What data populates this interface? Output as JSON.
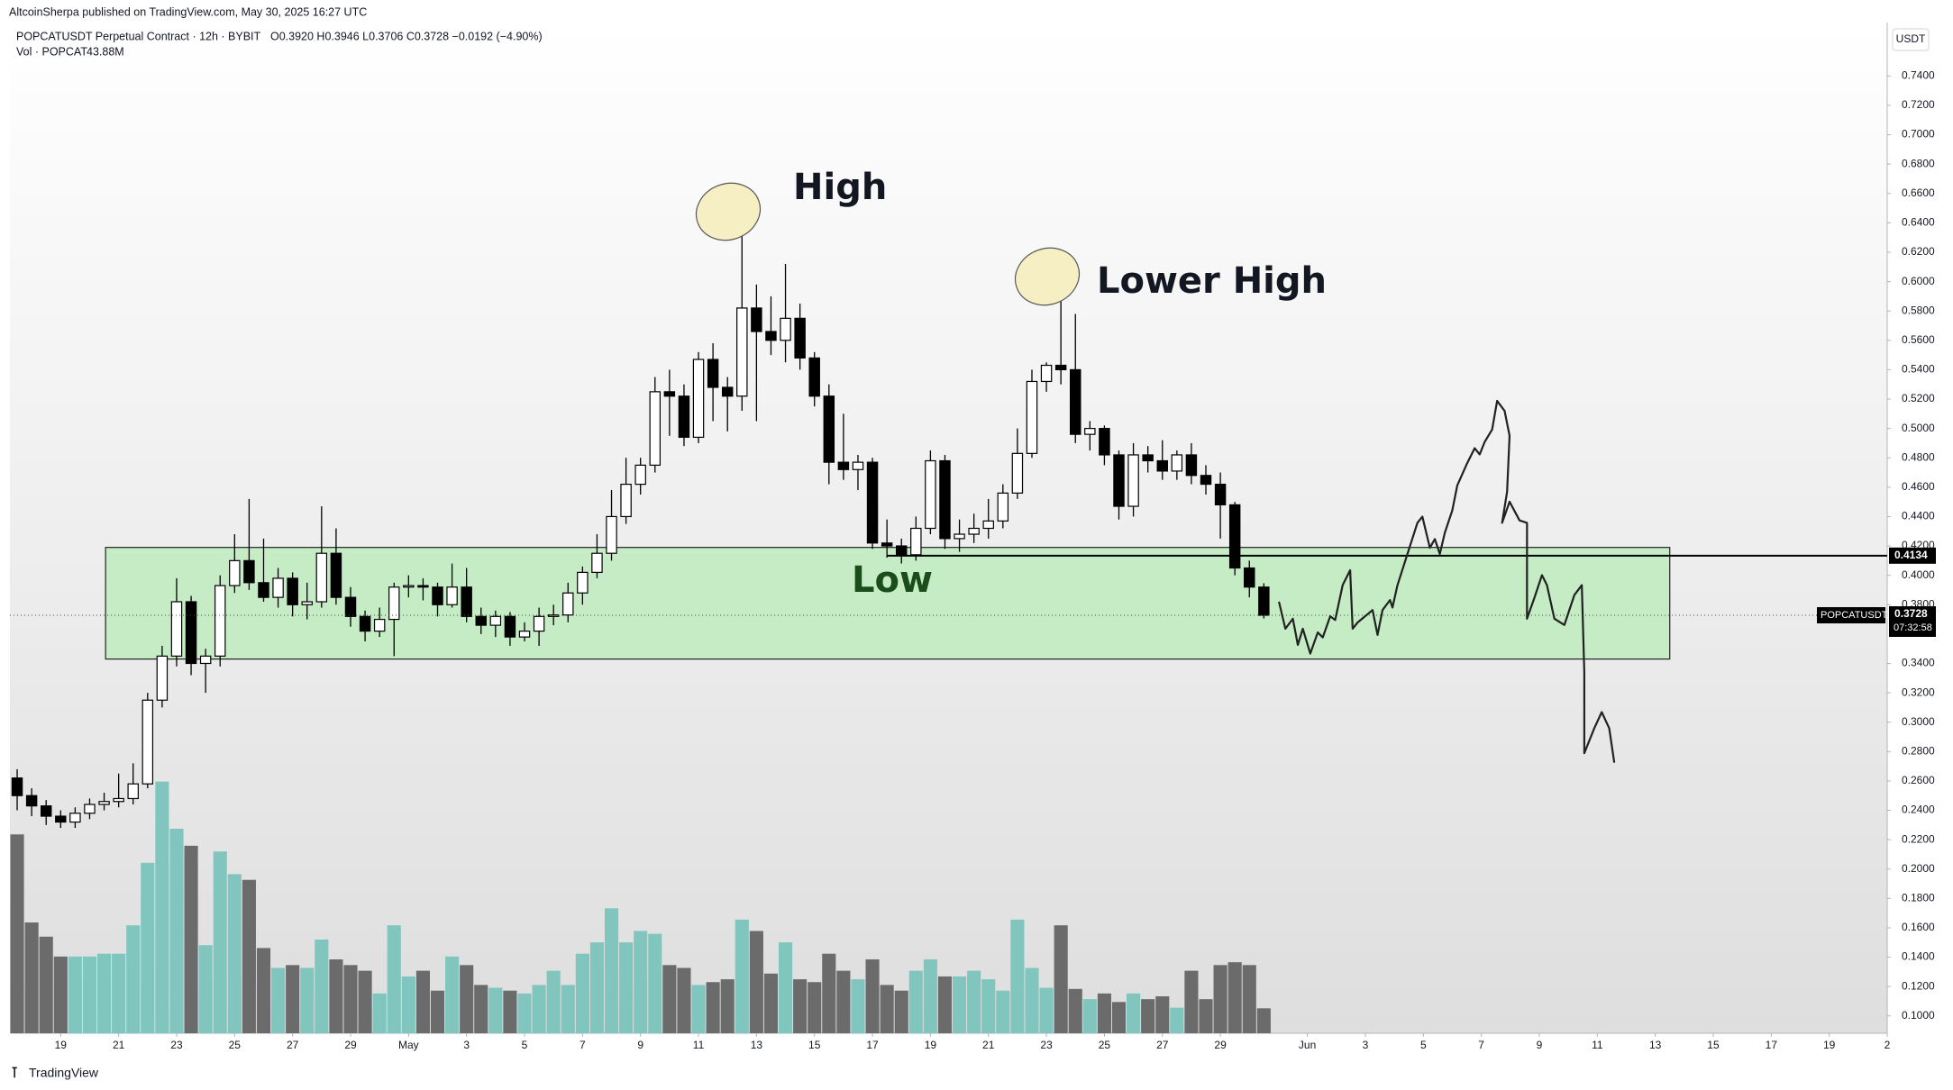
{
  "header": {
    "publisher": "AltcoinSherpa published on TradingView.com, May 30, 2025 16:27 UTC",
    "symbol": "POPCATUSDT Perpetual Contract · 12h · BYBIT",
    "ohlc": "O0.3920 H0.3946 L0.3706 C0.3728 −0.0192 (−4.90%)",
    "volume_legend": "Vol · POPCAT",
    "volume_value": "43.88M"
  },
  "annotations": {
    "high": "High",
    "lower_high": "Lower High",
    "low": "Low"
  },
  "footer": {
    "brand": "TradingView"
  },
  "chart_data": {
    "type": "candlestick",
    "y_axis_label": "USDT",
    "xlim": [
      -0.5,
      129
    ],
    "ylim": [
      0.0882,
      0.7764
    ],
    "xticks": [
      {
        "value": 3,
        "label": "19"
      },
      {
        "value": 7,
        "label": "21"
      },
      {
        "value": 11,
        "label": "23"
      },
      {
        "value": 15,
        "label": "25"
      },
      {
        "value": 19,
        "label": "27"
      },
      {
        "value": 23,
        "label": "29"
      },
      {
        "value": 27,
        "label": "May"
      },
      {
        "value": 31,
        "label": "3"
      },
      {
        "value": 35,
        "label": "5"
      },
      {
        "value": 39,
        "label": "7"
      },
      {
        "value": 43,
        "label": "9"
      },
      {
        "value": 47,
        "label": "11"
      },
      {
        "value": 51,
        "label": "13"
      },
      {
        "value": 55,
        "label": "15"
      },
      {
        "value": 59,
        "label": "17"
      },
      {
        "value": 63,
        "label": "19"
      },
      {
        "value": 67,
        "label": "21"
      },
      {
        "value": 71,
        "label": "23"
      },
      {
        "value": 75,
        "label": "25"
      },
      {
        "value": 79,
        "label": "27"
      },
      {
        "value": 83,
        "label": "29"
      },
      {
        "value": 89,
        "label": "Jun"
      },
      {
        "value": 93,
        "label": "3"
      },
      {
        "value": 97,
        "label": "5"
      },
      {
        "value": 101,
        "label": "7"
      },
      {
        "value": 105,
        "label": "9"
      },
      {
        "value": 109,
        "label": "11"
      },
      {
        "value": 113,
        "label": "13"
      },
      {
        "value": 117,
        "label": "15"
      },
      {
        "value": 121,
        "label": "17"
      },
      {
        "value": 125,
        "label": "19"
      },
      {
        "value": 129,
        "label": "2"
      }
    ],
    "yticks": [
      {
        "value": 0.74,
        "label": "0.7400"
      },
      {
        "value": 0.72,
        "label": "0.7200"
      },
      {
        "value": 0.7,
        "label": "0.7000"
      },
      {
        "value": 0.68,
        "label": "0.6800"
      },
      {
        "value": 0.66,
        "label": "0.6600"
      },
      {
        "value": 0.64,
        "label": "0.6400"
      },
      {
        "value": 0.62,
        "label": "0.6200"
      },
      {
        "value": 0.6,
        "label": "0.6000"
      },
      {
        "value": 0.58,
        "label": "0.5800"
      },
      {
        "value": 0.56,
        "label": "0.5600"
      },
      {
        "value": 0.54,
        "label": "0.5400"
      },
      {
        "value": 0.52,
        "label": "0.5200"
      },
      {
        "value": 0.5,
        "label": "0.5000"
      },
      {
        "value": 0.48,
        "label": "0.4800"
      },
      {
        "value": 0.46,
        "label": "0.4600"
      },
      {
        "value": 0.44,
        "label": "0.4400"
      },
      {
        "value": 0.42,
        "label": "0.4200"
      },
      {
        "value": 0.4,
        "label": "0.4000"
      },
      {
        "value": 0.38,
        "label": "0.3800"
      },
      {
        "value": 0.34,
        "label": "0.3400"
      },
      {
        "value": 0.32,
        "label": "0.3200"
      },
      {
        "value": 0.3,
        "label": "0.3000"
      },
      {
        "value": 0.28,
        "label": "0.2800"
      },
      {
        "value": 0.26,
        "label": "0.2600"
      },
      {
        "value": 0.24,
        "label": "0.2400"
      },
      {
        "value": 0.22,
        "label": "0.2200"
      },
      {
        "value": 0.2,
        "label": "0.2000"
      },
      {
        "value": 0.18,
        "label": "0.1800"
      },
      {
        "value": 0.16,
        "label": "0.1600"
      },
      {
        "value": 0.14,
        "label": "0.1400"
      },
      {
        "value": 0.12,
        "label": "0.1200"
      },
      {
        "value": 0.1,
        "label": "0.1000"
      }
    ],
    "open": [
      0.262,
      0.25,
      0.243,
      0.236,
      0.232,
      0.238,
      0.244,
      0.246,
      0.248,
      0.258,
      0.315,
      0.345,
      0.382,
      0.34,
      0.345,
      0.393,
      0.41,
      0.395,
      0.385,
      0.398,
      0.38,
      0.382,
      0.415,
      0.385,
      0.372,
      0.362,
      0.37,
      0.392,
      0.393,
      0.392,
      0.38,
      0.392,
      0.372,
      0.366,
      0.372,
      0.358,
      0.362,
      0.372,
      0.373,
      0.388,
      0.402,
      0.415,
      0.44,
      0.462,
      0.475,
      0.525,
      0.522,
      0.494,
      0.547,
      0.528,
      0.522,
      0.582,
      0.566,
      0.56,
      0.575,
      0.548,
      0.522,
      0.477,
      0.472,
      0.477,
      0.422,
      0.42,
      0.414,
      0.432,
      0.478,
      0.425,
      0.428,
      0.432,
      0.437,
      0.456,
      0.483,
      0.532,
      0.543,
      0.54,
      0.496,
      0.5,
      0.482,
      0.447,
      0.482,
      0.478,
      0.471,
      0.482,
      0.468,
      0.462,
      0.448,
      0.405,
      0.392
    ],
    "high": [
      0.268,
      0.255,
      0.247,
      0.24,
      0.242,
      0.248,
      0.252,
      0.265,
      0.272,
      0.32,
      0.352,
      0.398,
      0.386,
      0.35,
      0.4,
      0.428,
      0.452,
      0.425,
      0.405,
      0.402,
      0.395,
      0.447,
      0.432,
      0.392,
      0.376,
      0.378,
      0.395,
      0.4,
      0.398,
      0.395,
      0.408,
      0.405,
      0.378,
      0.376,
      0.375,
      0.368,
      0.378,
      0.38,
      0.395,
      0.406,
      0.428,
      0.458,
      0.48,
      0.48,
      0.535,
      0.54,
      0.53,
      0.552,
      0.558,
      0.535,
      0.648,
      0.598,
      0.59,
      0.612,
      0.585,
      0.552,
      0.53,
      0.51,
      0.482,
      0.48,
      0.438,
      0.425,
      0.44,
      0.485,
      0.482,
      0.438,
      0.442,
      0.452,
      0.462,
      0.5,
      0.54,
      0.545,
      0.6,
      0.578,
      0.505,
      0.502,
      0.485,
      0.49,
      0.488,
      0.492,
      0.485,
      0.49,
      0.475,
      0.47,
      0.45,
      0.41,
      0.3946
    ],
    "low": [
      0.24,
      0.236,
      0.23,
      0.228,
      0.228,
      0.234,
      0.24,
      0.242,
      0.244,
      0.255,
      0.31,
      0.338,
      0.332,
      0.32,
      0.338,
      0.388,
      0.39,
      0.382,
      0.378,
      0.372,
      0.37,
      0.378,
      0.38,
      0.365,
      0.355,
      0.358,
      0.345,
      0.385,
      0.383,
      0.372,
      0.378,
      0.368,
      0.36,
      0.358,
      0.352,
      0.355,
      0.352,
      0.366,
      0.368,
      0.38,
      0.398,
      0.41,
      0.435,
      0.455,
      0.47,
      0.495,
      0.488,
      0.49,
      0.505,
      0.498,
      0.512,
      0.505,
      0.55,
      0.545,
      0.54,
      0.515,
      0.462,
      0.465,
      0.458,
      0.418,
      0.412,
      0.408,
      0.41,
      0.428,
      0.418,
      0.416,
      0.422,
      0.425,
      0.432,
      0.452,
      0.48,
      0.525,
      0.53,
      0.49,
      0.485,
      0.475,
      0.438,
      0.44,
      0.47,
      0.465,
      0.465,
      0.462,
      0.455,
      0.425,
      0.4,
      0.385,
      0.3706
    ],
    "close": [
      0.25,
      0.243,
      0.236,
      0.232,
      0.238,
      0.244,
      0.246,
      0.248,
      0.258,
      0.315,
      0.345,
      0.382,
      0.34,
      0.345,
      0.393,
      0.41,
      0.395,
      0.385,
      0.398,
      0.38,
      0.382,
      0.415,
      0.385,
      0.372,
      0.362,
      0.37,
      0.392,
      0.393,
      0.392,
      0.38,
      0.392,
      0.372,
      0.366,
      0.372,
      0.358,
      0.362,
      0.372,
      0.373,
      0.388,
      0.402,
      0.415,
      0.44,
      0.462,
      0.475,
      0.525,
      0.522,
      0.494,
      0.547,
      0.528,
      0.522,
      0.582,
      0.566,
      0.56,
      0.575,
      0.548,
      0.522,
      0.477,
      0.472,
      0.477,
      0.422,
      0.42,
      0.414,
      0.432,
      0.478,
      0.425,
      0.428,
      0.432,
      0.437,
      0.456,
      0.483,
      0.532,
      0.543,
      0.54,
      0.496,
      0.5,
      0.482,
      0.447,
      0.482,
      0.478,
      0.471,
      0.482,
      0.468,
      0.462,
      0.448,
      0.405,
      0.392,
      0.3728
    ],
    "volume": [
      350,
      195,
      170,
      135,
      135,
      135,
      140,
      140,
      190,
      300,
      443,
      360,
      330,
      155,
      320,
      280,
      270,
      150,
      115,
      120,
      115,
      165,
      130,
      120,
      110,
      70,
      190,
      100,
      110,
      75,
      135,
      120,
      85,
      80,
      75,
      70,
      85,
      110,
      85,
      140,
      160,
      220,
      160,
      180,
      175,
      120,
      115,
      85,
      90,
      95,
      200,
      180,
      105,
      160,
      95,
      90,
      140,
      110,
      95,
      130,
      85,
      75,
      110,
      130,
      100,
      100,
      110,
      95,
      75,
      200,
      115,
      80,
      190,
      78,
      60,
      70,
      55,
      70,
      60,
      65,
      45,
      110,
      60,
      120,
      125,
      120,
      43.88
    ],
    "up_color": "#ffffff",
    "down_color": "#000000",
    "volume_up_color": "#80c6bf",
    "volume_down_color": "#6b6b6b",
    "zone": {
      "x_range": [
        6.1,
        114
      ],
      "y_range": [
        0.343,
        0.419
      ],
      "color": "#c6ecc6"
    },
    "level": {
      "value": 0.4134,
      "start": 60
    },
    "last_price": {
      "symbol": "POPCATUSDT.P",
      "countdown": "07:32:58"
    }
  }
}
